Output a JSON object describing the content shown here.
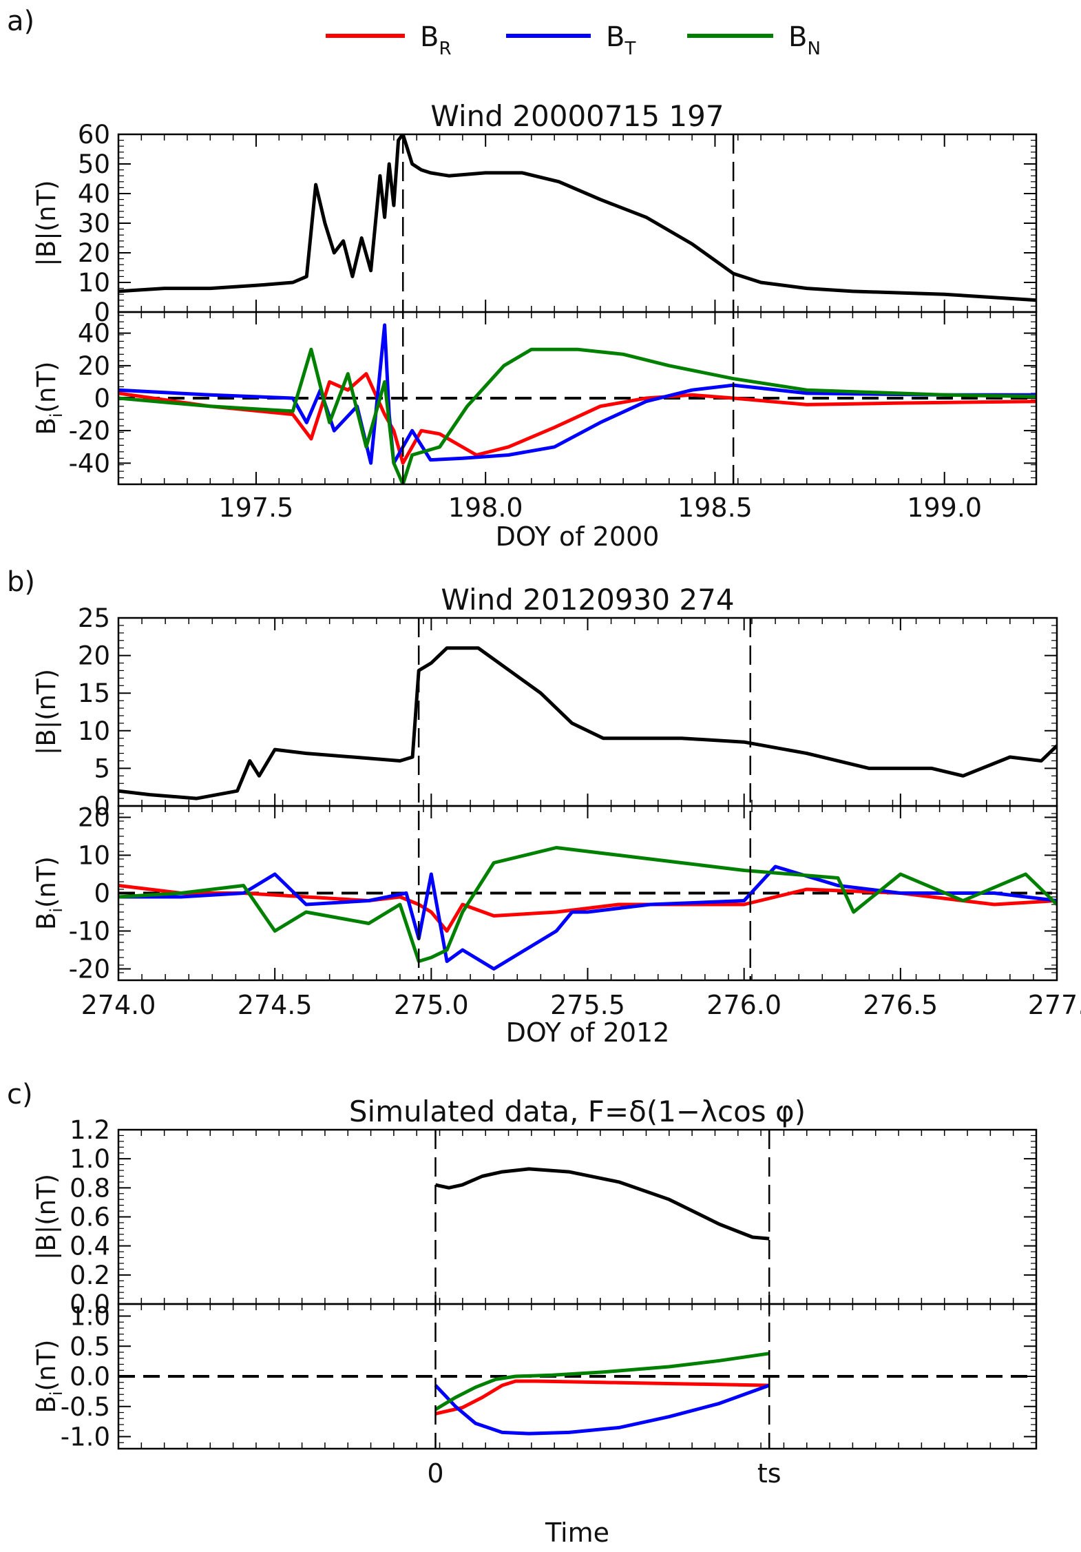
{
  "legend": {
    "items": [
      {
        "base": "B",
        "sub": "R",
        "color": "#ff0000"
      },
      {
        "base": "B",
        "sub": "T",
        "color": "#0000ff"
      },
      {
        "base": "B",
        "sub": "N",
        "color": "#008000"
      }
    ]
  },
  "panel_labels": {
    "a": "a)",
    "b": "b)",
    "c": "c)"
  },
  "chart_data": [
    {
      "id": "a",
      "type": "line",
      "title": "Wind 20000715 197",
      "xlabel": "DOY of 2000",
      "xlim": [
        197.2,
        199.2
      ],
      "xticks": [
        197.5,
        198.0,
        198.5,
        199.0
      ],
      "xticklabels": [
        "197.5",
        "198.0",
        "198.5",
        "199.0"
      ],
      "boundaries": [
        197.82,
        198.54
      ],
      "top": {
        "ylabel": "|B|(nT)",
        "ylim": [
          0,
          60
        ],
        "yticks": [
          0,
          10,
          20,
          30,
          40,
          50,
          60
        ],
        "yticklabels": [
          "0",
          "10",
          "20",
          "30",
          "40",
          "50",
          "60"
        ],
        "series": [
          {
            "name": "|B|",
            "color": "#000000",
            "x": [
              197.2,
              197.3,
              197.4,
              197.5,
              197.58,
              197.61,
              197.63,
              197.65,
              197.67,
              197.69,
              197.71,
              197.73,
              197.75,
              197.77,
              197.78,
              197.79,
              197.8,
              197.81,
              197.82,
              197.84,
              197.86,
              197.88,
              197.92,
              198.0,
              198.08,
              198.16,
              198.25,
              198.35,
              198.45,
              198.54,
              198.6,
              198.7,
              198.8,
              199.0,
              199.1,
              199.2
            ],
            "y": [
              7,
              8,
              8,
              9,
              10,
              12,
              43,
              30,
              20,
              24,
              12,
              25,
              14,
              46,
              32,
              50,
              36,
              58,
              60,
              50,
              48,
              47,
              46,
              47,
              47,
              44,
              38,
              32,
              23,
              13,
              10,
              8,
              7,
              6,
              5,
              4
            ]
          }
        ]
      },
      "bottom": {
        "ylabel": {
          "base": "B",
          "sub": "i",
          "tail": "(nT)"
        },
        "ylim": [
          -53,
          53
        ],
        "yticks": [
          -40,
          -20,
          0,
          20,
          40
        ],
        "yticklabels": [
          "-40",
          "-20",
          "0",
          "20",
          "40"
        ],
        "series": [
          {
            "name": "B_R",
            "color": "#ff0000",
            "x": [
              197.2,
              197.4,
              197.58,
              197.62,
              197.66,
              197.7,
              197.74,
              197.78,
              197.8,
              197.82,
              197.86,
              197.9,
              197.98,
              198.05,
              198.15,
              198.25,
              198.35,
              198.45,
              198.54,
              198.7,
              198.9,
              199.2
            ],
            "y": [
              3,
              -5,
              -10,
              -25,
              10,
              5,
              15,
              -10,
              -20,
              -40,
              -20,
              -22,
              -35,
              -30,
              -18,
              -5,
              0,
              2,
              0,
              -4,
              -3,
              -2
            ]
          },
          {
            "name": "B_T",
            "color": "#0000ff",
            "x": [
              197.2,
              197.4,
              197.58,
              197.61,
              197.64,
              197.67,
              197.72,
              197.75,
              197.78,
              197.79,
              197.8,
              197.82,
              197.84,
              197.88,
              197.95,
              198.05,
              198.15,
              198.25,
              198.35,
              198.45,
              198.54,
              198.7,
              199.0,
              199.2
            ],
            "y": [
              5,
              2,
              0,
              -15,
              5,
              -20,
              -5,
              -40,
              45,
              -10,
              -40,
              -30,
              -20,
              -38,
              -37,
              -35,
              -30,
              -15,
              -2,
              5,
              8,
              3,
              2,
              2
            ]
          },
          {
            "name": "B_N",
            "color": "#008000",
            "x": [
              197.2,
              197.4,
              197.58,
              197.62,
              197.66,
              197.7,
              197.74,
              197.78,
              197.8,
              197.82,
              197.84,
              197.9,
              197.96,
              198.04,
              198.1,
              198.2,
              198.3,
              198.4,
              198.54,
              198.7,
              199.0,
              199.2
            ],
            "y": [
              0,
              -5,
              -8,
              30,
              -15,
              15,
              -30,
              10,
              -40,
              -53,
              -35,
              -30,
              -5,
              20,
              30,
              30,
              27,
              20,
              12,
              5,
              2,
              1
            ]
          }
        ]
      }
    },
    {
      "id": "b",
      "type": "line",
      "title": "Wind 20120930 274",
      "xlabel": "DOY of 2012",
      "xlim": [
        274.0,
        277.0
      ],
      "xticks": [
        274.0,
        274.5,
        275.0,
        275.5,
        276.0,
        276.5,
        277.0
      ],
      "xticklabels": [
        "274.0",
        "274.5",
        "275.0",
        "275.5",
        "276.0",
        "276.5",
        "277."
      ],
      "boundaries": [
        274.96,
        276.02
      ],
      "top": {
        "ylabel": "|B|(nT)",
        "ylim": [
          0,
          25
        ],
        "yticks": [
          0,
          5,
          10,
          15,
          20,
          25
        ],
        "yticklabels": [
          "0",
          "5",
          "10",
          "15",
          "20",
          "25"
        ],
        "series": [
          {
            "name": "|B|",
            "color": "#000000",
            "x": [
              274.0,
              274.1,
              274.25,
              274.38,
              274.42,
              274.45,
              274.5,
              274.6,
              274.75,
              274.9,
              274.94,
              274.96,
              275.0,
              275.05,
              275.15,
              275.25,
              275.35,
              275.45,
              275.55,
              275.65,
              275.8,
              276.0,
              276.2,
              276.4,
              276.6,
              276.7,
              276.85,
              276.95,
              277.0
            ],
            "y": [
              2,
              1.5,
              1,
              2,
              6,
              4,
              7.5,
              7,
              6.5,
              6,
              6.5,
              18,
              19,
              21,
              21,
              18,
              15,
              11,
              9,
              9,
              9,
              8.5,
              7,
              5,
              5,
              4,
              6.5,
              6,
              8
            ]
          }
        ]
      },
      "bottom": {
        "ylabel": {
          "base": "B",
          "sub": "i",
          "tail": "(nT)"
        },
        "ylim": [
          -23,
          23
        ],
        "yticks": [
          -20,
          -10,
          0,
          10,
          20
        ],
        "yticklabels": [
          "-20",
          "-10",
          "0",
          "10",
          "20"
        ],
        "series": [
          {
            "name": "B_R",
            "color": "#ff0000",
            "x": [
              274.0,
              274.2,
              274.4,
              274.6,
              274.8,
              274.9,
              274.96,
              275.0,
              275.05,
              275.1,
              275.2,
              275.4,
              275.6,
              276.0,
              276.2,
              276.5,
              276.8,
              277.0
            ],
            "y": [
              2,
              0,
              0,
              -1,
              -2,
              -1,
              -3,
              -5,
              -10,
              -3,
              -6,
              -5,
              -3,
              -3,
              1,
              0,
              -3,
              -2
            ]
          },
          {
            "name": "B_T",
            "color": "#0000ff",
            "x": [
              274.0,
              274.2,
              274.4,
              274.5,
              274.6,
              274.8,
              274.92,
              274.96,
              275.0,
              275.05,
              275.1,
              275.2,
              275.3,
              275.4,
              275.45,
              275.5,
              275.7,
              276.0,
              276.1,
              276.3,
              276.5,
              276.8,
              277.0
            ],
            "y": [
              -1,
              -1,
              0,
              5,
              -3,
              -2,
              0,
              -12,
              5,
              -18,
              -15,
              -20,
              -15,
              -10,
              -5,
              -5,
              -3,
              -2,
              7,
              2,
              0,
              0,
              -2
            ]
          },
          {
            "name": "B_N",
            "color": "#008000",
            "x": [
              274.0,
              274.2,
              274.4,
              274.5,
              274.6,
              274.8,
              274.9,
              274.96,
              275.0,
              275.05,
              275.1,
              275.2,
              275.4,
              275.6,
              275.8,
              276.0,
              276.3,
              276.35,
              276.5,
              276.7,
              276.9,
              277.0
            ],
            "y": [
              -1,
              0,
              2,
              -10,
              -5,
              -8,
              -3,
              -18,
              -17,
              -15,
              -5,
              8,
              12,
              10,
              8,
              6,
              4,
              -5,
              5,
              -2,
              5,
              -3
            ]
          }
        ]
      }
    },
    {
      "id": "c",
      "type": "line",
      "title": "Simulated data, F=δ(1−λcos φ)",
      "xlabel": "Time",
      "xlim": [
        -0.95,
        1.8
      ],
      "xticks": [
        0,
        1
      ],
      "xticklabels": [
        "0",
        "ts"
      ],
      "boundaries": [
        0,
        1
      ],
      "top": {
        "ylabel": "|B|(nT)",
        "ylim": [
          0,
          1.2
        ],
        "yticks": [
          0.0,
          0.2,
          0.4,
          0.6,
          0.8,
          1.0,
          1.2
        ],
        "yticklabels": [
          "0.0",
          "0.2",
          "0.4",
          "0.6",
          "0.8",
          "1.0",
          "1.2"
        ],
        "series": [
          {
            "name": "|B|",
            "color": "#000000",
            "x": [
              0.0,
              0.04,
              0.08,
              0.14,
              0.2,
              0.28,
              0.4,
              0.55,
              0.7,
              0.85,
              0.95,
              1.0
            ],
            "y": [
              0.82,
              0.8,
              0.82,
              0.88,
              0.91,
              0.93,
              0.91,
              0.84,
              0.72,
              0.55,
              0.46,
              0.45
            ]
          }
        ]
      },
      "bottom": {
        "ylabel": {
          "base": "B",
          "sub": "i",
          "tail": "(nT)"
        },
        "ylim": [
          -1.2,
          1.2
        ],
        "yticks": [
          -1.0,
          -0.5,
          0.0,
          0.5,
          1.0
        ],
        "yticklabels": [
          "-1.0",
          "-0.5",
          "0.0",
          "0.5",
          "1.0"
        ],
        "series": [
          {
            "name": "B_R",
            "color": "#ff0000",
            "x": [
              0.0,
              0.08,
              0.14,
              0.2,
              0.24,
              0.3,
              0.5,
              0.8,
              1.0
            ],
            "y": [
              -0.62,
              -0.52,
              -0.35,
              -0.15,
              -0.08,
              -0.08,
              -0.1,
              -0.13,
              -0.15
            ]
          },
          {
            "name": "B_T",
            "color": "#0000ff",
            "x": [
              0.0,
              0.06,
              0.12,
              0.2,
              0.28,
              0.4,
              0.55,
              0.7,
              0.85,
              1.0
            ],
            "y": [
              -0.15,
              -0.5,
              -0.78,
              -0.93,
              -0.95,
              -0.93,
              -0.85,
              -0.67,
              -0.45,
              -0.15
            ]
          },
          {
            "name": "B_N",
            "color": "#008000",
            "x": [
              0.0,
              0.06,
              0.12,
              0.18,
              0.24,
              0.35,
              0.5,
              0.7,
              0.85,
              1.0
            ],
            "y": [
              -0.55,
              -0.35,
              -0.18,
              -0.05,
              0.0,
              0.02,
              0.07,
              0.16,
              0.26,
              0.38
            ]
          }
        ]
      }
    }
  ]
}
